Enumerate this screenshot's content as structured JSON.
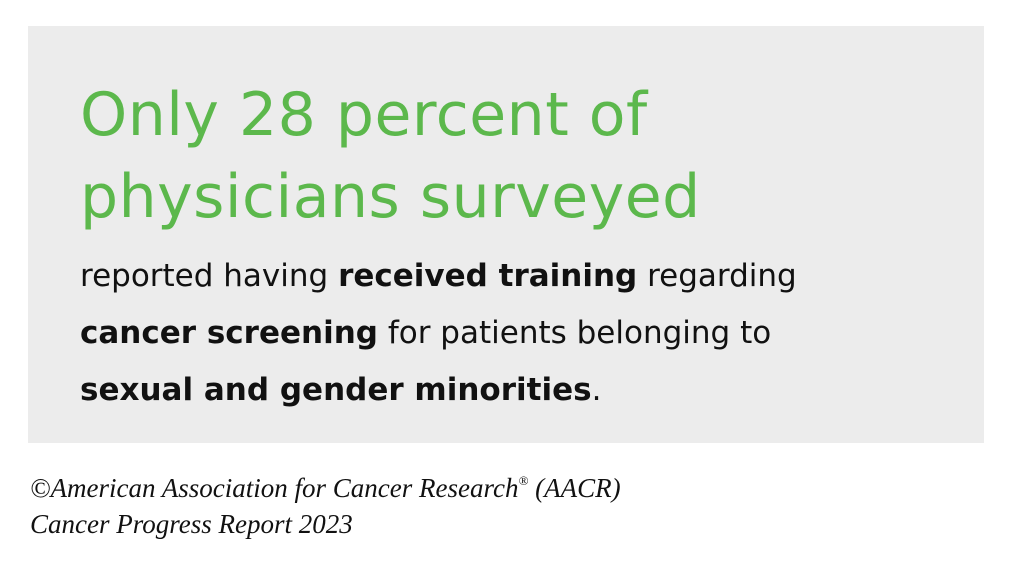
{
  "headline": {
    "lines": [
      "Only 28 percent of",
      "physicians surveyed"
    ],
    "color": "#5cb84c"
  },
  "body": {
    "lines": [
      [
        {
          "text": "reported having ",
          "bold": false
        },
        {
          "text": "received training",
          "bold": true
        },
        {
          "text": " regarding",
          "bold": false
        }
      ],
      [
        {
          "text": "cancer screening",
          "bold": true
        },
        {
          "text": " for patients belonging to",
          "bold": false
        }
      ],
      [
        {
          "text": "sexual and gender minorities",
          "bold": true
        },
        {
          "text": ".",
          "bold": false
        }
      ]
    ]
  },
  "footer": {
    "lines": [
      [
        {
          "text": "©American Association for Cancer Research",
          "sup": false
        },
        {
          "text": "®",
          "sup": true
        },
        {
          "text": " (AACR)",
          "sup": false
        }
      ],
      [
        {
          "text": "Cancer Progress Report 2023",
          "sup": false
        }
      ]
    ]
  }
}
